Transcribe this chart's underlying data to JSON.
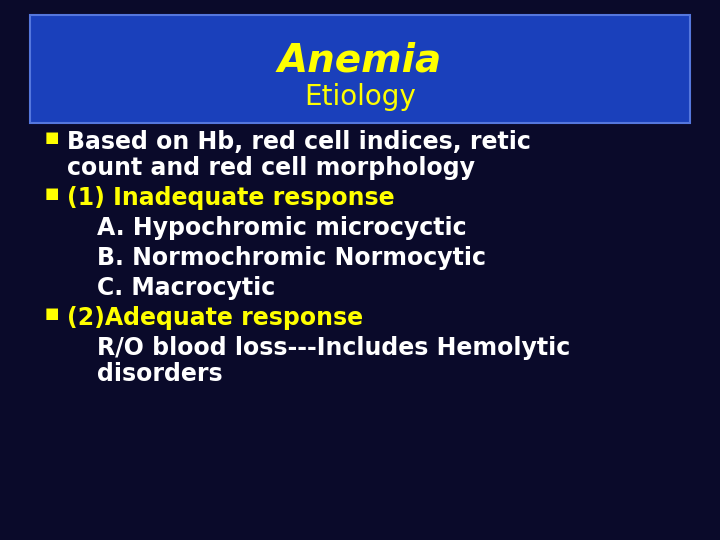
{
  "title": "Anemia",
  "subtitle": "Etiology",
  "title_color": "#FFFF00",
  "subtitle_color": "#FFFF00",
  "title_fontsize": 28,
  "subtitle_fontsize": 20,
  "bg_color": "#0a0a2a",
  "header_bg_color": "#1a40bb",
  "header_border_color": "#5577dd",
  "text_color_white": "#FFFFFF",
  "text_color_yellow": "#FFFF00",
  "bullet_color": "#FFFF00",
  "bullet_size": 11,
  "body_fontsize": 17,
  "lines": [
    {
      "type": "bullet",
      "text": "Based on Hb, red cell indices, retic\n   count and red cell morphology",
      "color": "white",
      "indent": 0
    },
    {
      "type": "bullet",
      "text": "(1) Inadequate response",
      "color": "yellow",
      "indent": 0
    },
    {
      "type": "plain",
      "text": "A. Hypochromic microcyctic",
      "color": "white",
      "indent": 1
    },
    {
      "type": "plain",
      "text": "B. Normochromic Normocytic",
      "color": "white",
      "indent": 1
    },
    {
      "type": "plain",
      "text": "C. Macrocytic",
      "color": "white",
      "indent": 1
    },
    {
      "type": "bullet",
      "text": "(2)Adequate response",
      "color": "yellow",
      "indent": 0
    },
    {
      "type": "plain",
      "text": "R/O blood loss---Includes Hemolytic\n   disorders",
      "color": "white",
      "indent": 1
    }
  ],
  "fig_width": 7.2,
  "fig_height": 5.4,
  "dpi": 100
}
